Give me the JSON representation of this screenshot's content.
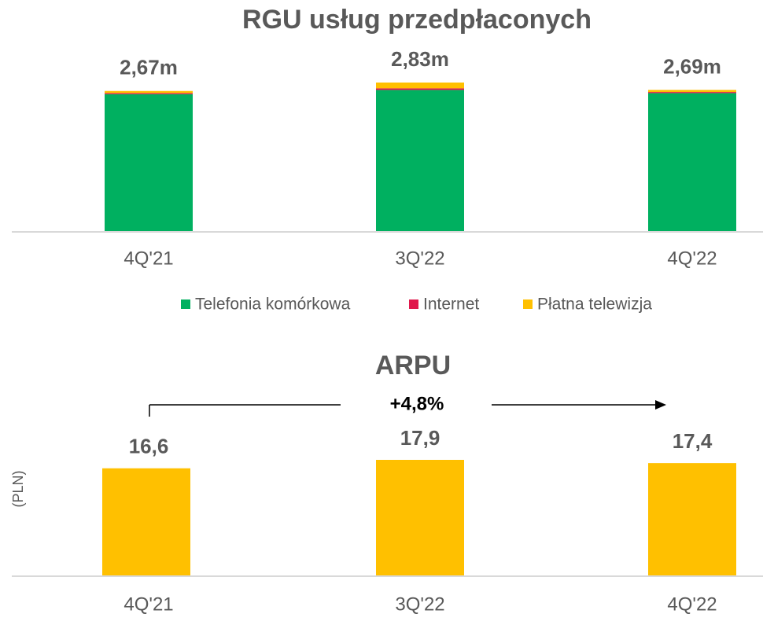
{
  "chart_data": [
    {
      "type": "stacked-bar",
      "title": "RGU usług przedpłaconych",
      "categories": [
        "4Q'21",
        "3Q'22",
        "4Q'22"
      ],
      "series": [
        {
          "name": "Telefonia komórkowa",
          "color": "#00b060",
          "values": [
            2.61,
            2.69,
            2.63
          ]
        },
        {
          "name": "Internet",
          "color": "#e0184c",
          "values": [
            0.02,
            0.03,
            0.02
          ]
        },
        {
          "name": "Płatna telewizja",
          "color": "#ffc000",
          "values": [
            0.04,
            0.11,
            0.04
          ]
        }
      ],
      "totals": [
        2.67,
        2.83,
        2.69
      ],
      "total_labels": [
        "2,67m",
        "2,83m",
        "2,69m"
      ]
    },
    {
      "type": "bar",
      "title": "ARPU",
      "y_label": "(PLN)",
      "annotation": "+4,8%",
      "categories": [
        "4Q'21",
        "3Q'22",
        "4Q'22"
      ],
      "values": [
        16.6,
        17.9,
        17.4
      ],
      "value_labels": [
        "16,6",
        "17,9",
        "17,4"
      ],
      "color": "#ffc000"
    }
  ]
}
